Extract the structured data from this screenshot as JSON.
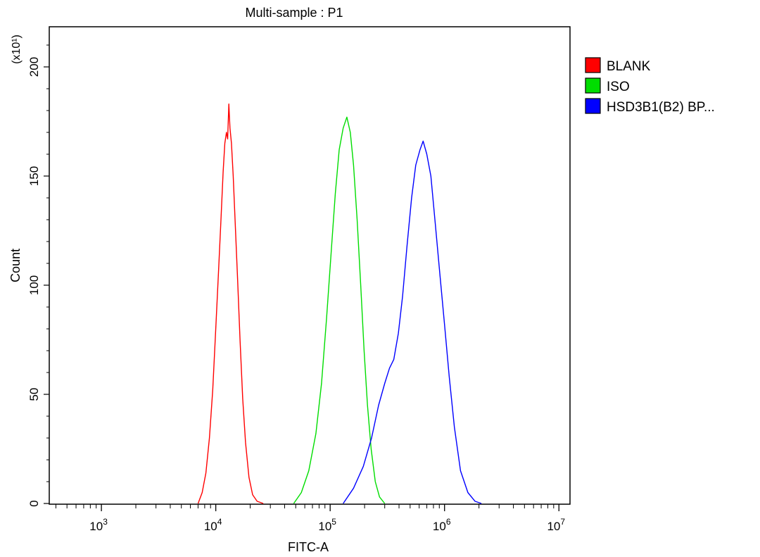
{
  "chart_data": {
    "type": "line",
    "title": "Multi-sample : P1",
    "xlabel": "FITC-A",
    "ylabel": "Count",
    "y_multiplier_label": "(x10¹)",
    "xscale": "log",
    "xlim": [
      350,
      12500000
    ],
    "ylim": [
      0,
      220
    ],
    "x_ticks": [
      {
        "value": 1000,
        "base": "10",
        "exp": "3"
      },
      {
        "value": 10000,
        "base": "10",
        "exp": "4"
      },
      {
        "value": 100000,
        "base": "10",
        "exp": "5"
      },
      {
        "value": 1000000,
        "base": "10",
        "exp": "6"
      },
      {
        "value": 10000000,
        "base": "10",
        "exp": "7"
      }
    ],
    "y_ticks": [
      0,
      50,
      100,
      150,
      200
    ],
    "grid": false,
    "legend_position": "right",
    "series": [
      {
        "name": "BLANK",
        "color": "#ff0000",
        "points": [
          [
            7000,
            0
          ],
          [
            7600,
            5
          ],
          [
            8200,
            14
          ],
          [
            8800,
            30
          ],
          [
            9400,
            52
          ],
          [
            10000,
            80
          ],
          [
            10600,
            108
          ],
          [
            11100,
            130
          ],
          [
            11600,
            152
          ],
          [
            12000,
            165
          ],
          [
            12400,
            170
          ],
          [
            12700,
            167
          ],
          [
            13000,
            183
          ],
          [
            13300,
            172
          ],
          [
            13700,
            165
          ],
          [
            14200,
            150
          ],
          [
            14800,
            128
          ],
          [
            15500,
            103
          ],
          [
            16300,
            75
          ],
          [
            17200,
            48
          ],
          [
            18200,
            28
          ],
          [
            19500,
            12
          ],
          [
            21000,
            4
          ],
          [
            23000,
            1
          ],
          [
            26000,
            0
          ]
        ]
      },
      {
        "name": "ISO",
        "color": "#00dd00",
        "points": [
          [
            48000,
            0
          ],
          [
            56000,
            5
          ],
          [
            65000,
            15
          ],
          [
            75000,
            32
          ],
          [
            84000,
            55
          ],
          [
            93000,
            85
          ],
          [
            102000,
            115
          ],
          [
            111000,
            142
          ],
          [
            120000,
            162
          ],
          [
            130000,
            172
          ],
          [
            140000,
            177
          ],
          [
            150000,
            170
          ],
          [
            160000,
            155
          ],
          [
            172000,
            130
          ],
          [
            185000,
            100
          ],
          [
            198000,
            70
          ],
          [
            212000,
            45
          ],
          [
            228000,
            25
          ],
          [
            248000,
            10
          ],
          [
            270000,
            3
          ],
          [
            300000,
            0
          ]
        ]
      },
      {
        "name": "HSD3B1(B2) BP...",
        "color": "#0000ff",
        "points": [
          [
            130000,
            0
          ],
          [
            160000,
            7
          ],
          [
            195000,
            17
          ],
          [
            230000,
            30
          ],
          [
            265000,
            45
          ],
          [
            300000,
            55
          ],
          [
            330000,
            62
          ],
          [
            360000,
            66
          ],
          [
            395000,
            78
          ],
          [
            430000,
            95
          ],
          [
            470000,
            118
          ],
          [
            515000,
            140
          ],
          [
            560000,
            155
          ],
          [
            610000,
            162
          ],
          [
            650000,
            166
          ],
          [
            700000,
            160
          ],
          [
            760000,
            150
          ],
          [
            830000,
            128
          ],
          [
            910000,
            105
          ],
          [
            1000000,
            82
          ],
          [
            1100000,
            58
          ],
          [
            1220000,
            35
          ],
          [
            1380000,
            15
          ],
          [
            1600000,
            5
          ],
          [
            1850000,
            1
          ],
          [
            2100000,
            0
          ]
        ]
      }
    ]
  }
}
